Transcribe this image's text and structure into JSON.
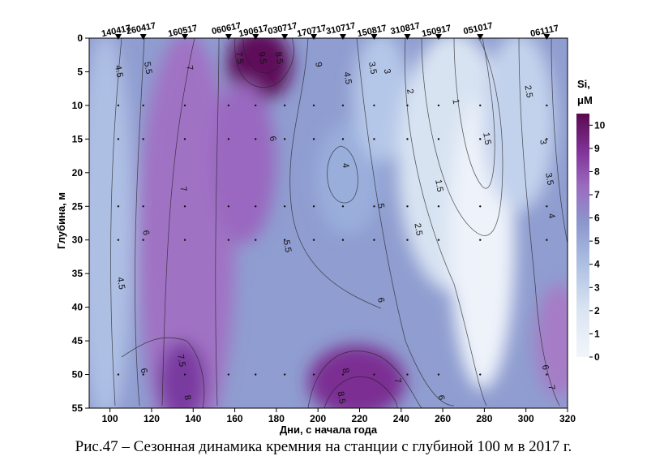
{
  "caption": "Рис.47 – Сезонная динамика кремния на станции с глубиной 100 м в 2017 г.",
  "chart_data": {
    "type": "heatmap",
    "title": "",
    "xlabel": "Дни, с начала года",
    "ylabel": "Глубина, м",
    "xlim": [
      90,
      320
    ],
    "ylim": [
      55,
      0
    ],
    "x_ticks": [
      100,
      120,
      140,
      160,
      180,
      200,
      220,
      240,
      260,
      280,
      300,
      320
    ],
    "y_ticks": [
      0,
      5,
      10,
      15,
      20,
      25,
      30,
      35,
      40,
      45,
      50,
      55
    ],
    "colorbar": {
      "title_line1": "Si,",
      "title_line2": "μM",
      "ticks": [
        0,
        1,
        2,
        3,
        4,
        5,
        6,
        7,
        8,
        9,
        10
      ],
      "range": [
        0,
        10.5
      ],
      "color_low": "#f2f6fb",
      "color_mid": "#8fa3d2",
      "color_high": "#5a0a4e"
    },
    "stations": [
      {
        "label": "140417",
        "day": 104
      },
      {
        "label": "260417",
        "day": 116
      },
      {
        "label": "160517",
        "day": 136
      },
      {
        "label": "060617",
        "day": 157
      },
      {
        "label": "190617",
        "day": 170
      },
      {
        "label": "030717",
        "day": 184
      },
      {
        "label": "170717",
        "day": 198
      },
      {
        "label": "310717",
        "day": 212
      },
      {
        "label": "150817",
        "day": 227
      },
      {
        "label": "310817",
        "day": 243
      },
      {
        "label": "150917",
        "day": 258
      },
      {
        "label": "051017",
        "day": 278
      },
      {
        "label": "061117",
        "day": 310
      }
    ],
    "contour_labels": [
      {
        "text": "4.5",
        "day": 103,
        "depth": 5
      },
      {
        "text": "5.5",
        "day": 117,
        "depth": 4.5
      },
      {
        "text": "7",
        "day": 137,
        "depth": 4.5
      },
      {
        "text": "7.5",
        "day": 161,
        "depth": 3
      },
      {
        "text": "9.5",
        "day": 172,
        "depth": 3
      },
      {
        "text": "8.5",
        "day": 180,
        "depth": 3
      },
      {
        "text": "9",
        "day": 199,
        "depth": 4
      },
      {
        "text": "4.5",
        "day": 213,
        "depth": 6
      },
      {
        "text": "3.5",
        "day": 225,
        "depth": 4.5
      },
      {
        "text": "3",
        "day": 232,
        "depth": 5
      },
      {
        "text": "2",
        "day": 243,
        "depth": 8
      },
      {
        "text": "1",
        "day": 265,
        "depth": 9.5
      },
      {
        "text": "2.5",
        "day": 300,
        "depth": 8
      },
      {
        "text": "1.5",
        "day": 280,
        "depth": 15
      },
      {
        "text": "3",
        "day": 307,
        "depth": 15.5
      },
      {
        "text": "6",
        "day": 177,
        "depth": 15
      },
      {
        "text": "4",
        "day": 212,
        "depth": 19
      },
      {
        "text": "7",
        "day": 134,
        "depth": 22.5
      },
      {
        "text": "1.5",
        "day": 257,
        "depth": 22
      },
      {
        "text": "3.5",
        "day": 310,
        "depth": 21
      },
      {
        "text": "5",
        "day": 229,
        "depth": 25
      },
      {
        "text": "4",
        "day": 311,
        "depth": 26.5
      },
      {
        "text": "6",
        "day": 116,
        "depth": 29
      },
      {
        "text": "2.5",
        "day": 247,
        "depth": 28.5
      },
      {
        "text": "5.5",
        "day": 184,
        "depth": 31
      },
      {
        "text": "4.5",
        "day": 104,
        "depth": 36.5
      },
      {
        "text": "6",
        "day": 229,
        "depth": 39
      },
      {
        "text": "7.5",
        "day": 133,
        "depth": 48
      },
      {
        "text": "8",
        "day": 212,
        "depth": 49.5
      },
      {
        "text": "7",
        "day": 237,
        "depth": 51
      },
      {
        "text": "6",
        "day": 115,
        "depth": 49.5
      },
      {
        "text": "6",
        "day": 308,
        "depth": 49
      },
      {
        "text": "7",
        "day": 311,
        "depth": 52
      },
      {
        "text": "8.5",
        "day": 210,
        "depth": 53.5
      },
      {
        "text": "6",
        "day": 258,
        "depth": 53.5
      },
      {
        "text": "8",
        "day": 136,
        "depth": 53.5
      }
    ],
    "grid": false,
    "colorbar_position": "right"
  }
}
